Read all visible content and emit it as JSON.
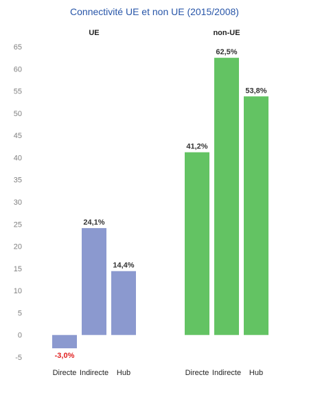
{
  "chart_data": {
    "type": "bar",
    "title": "Connectivité UE et non UE (2015/2008)",
    "colors": {
      "title": "#2755a8",
      "ue": "#8b99cf",
      "non_ue": "#63c363",
      "negative_label": "#e02020",
      "axis_text": "#7f7f7f",
      "value_text": "#333333"
    },
    "y_ticks": [
      "65",
      "60",
      "55",
      "50",
      "45",
      "40",
      "35",
      "30",
      "25",
      "20",
      "15",
      "10",
      "5",
      "0",
      "-5"
    ],
    "ylim": [
      -5,
      65
    ],
    "grid": false,
    "value_unit": "%",
    "panels": [
      {
        "name": "UE",
        "color_key": "ue",
        "categories": [
          "Directe",
          "Indirecte",
          "Hub"
        ],
        "values": [
          -3.0,
          24.1,
          14.4
        ],
        "labels": [
          "-3,0%",
          "24,1%",
          "14,4%"
        ]
      },
      {
        "name": "non-UE",
        "color_key": "non_ue",
        "categories": [
          "Directe",
          "Indirecte",
          "Hub"
        ],
        "values": [
          41.2,
          62.5,
          53.8
        ],
        "labels": [
          "41,2%",
          "62,5%",
          "53,8%"
        ]
      }
    ]
  }
}
